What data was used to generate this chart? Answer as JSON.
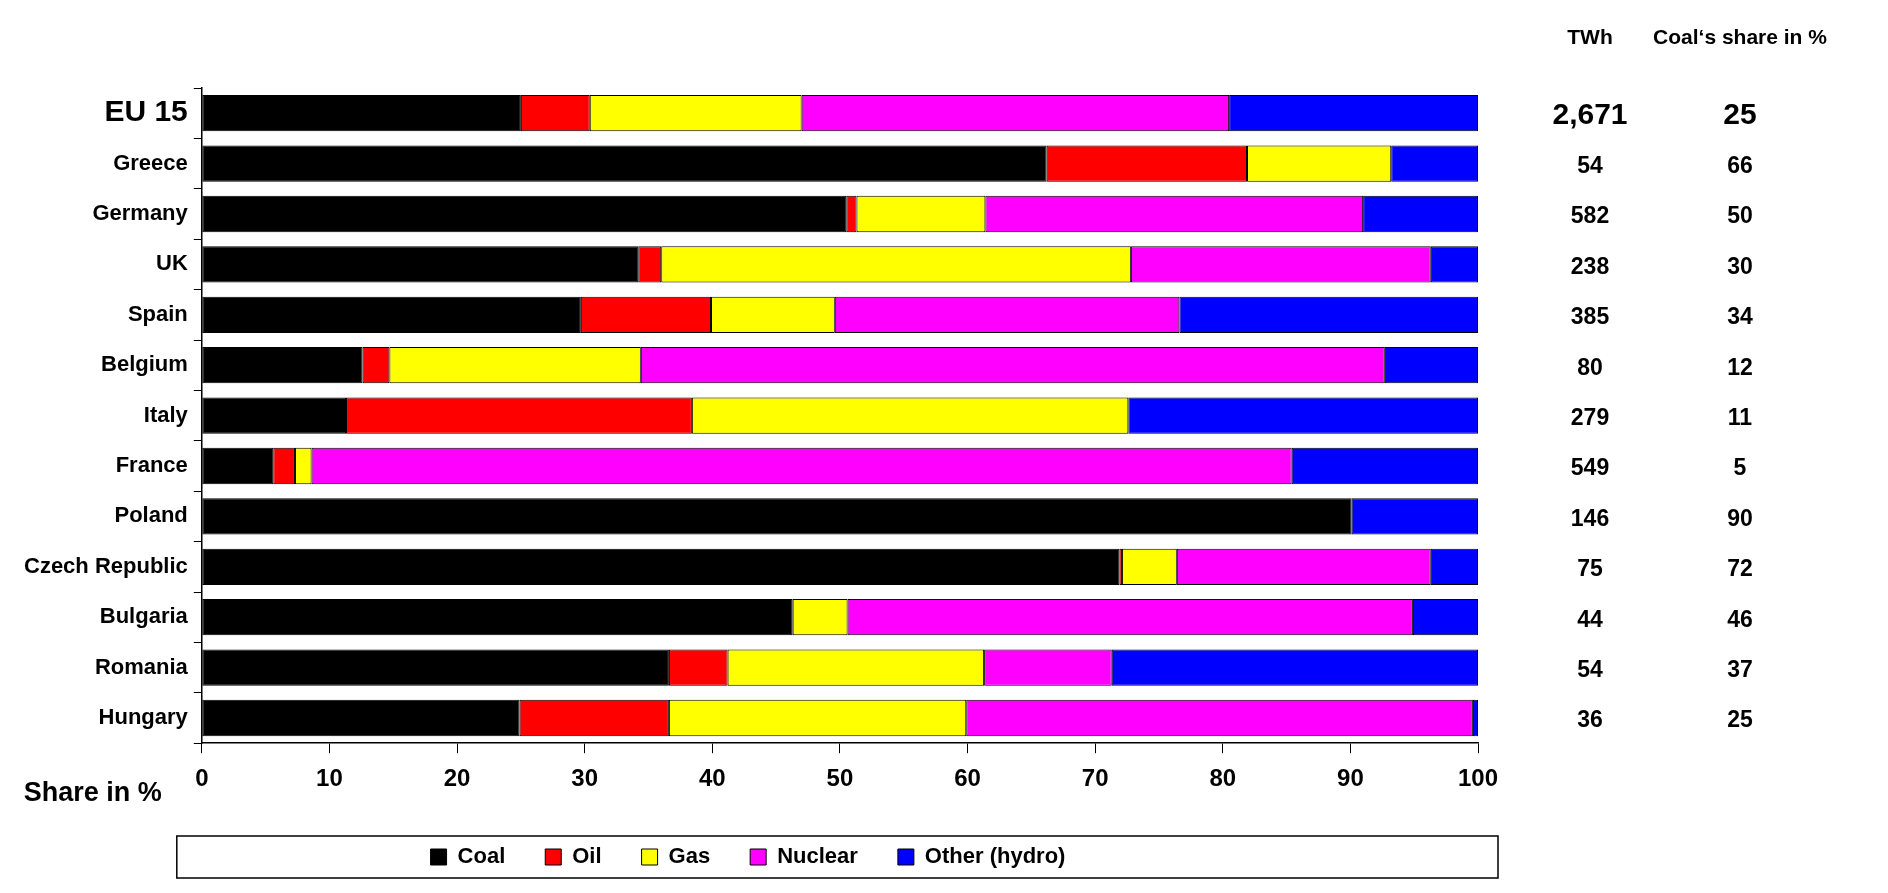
{
  "chart_data": {
    "type": "bar",
    "orientation": "horizontal",
    "stacked": true,
    "xlabel": "Share in %",
    "categories": [
      "EU 15",
      "Greece",
      "Germany",
      "UK",
      "Spain",
      "Belgium",
      "Italy",
      "France",
      "Poland",
      "Czech Republic",
      "Bulgaria",
      "Romania",
      "Hungary"
    ],
    "series": [
      {
        "name": "Coal",
        "color": "#000000",
        "values": [
          25,
          66.2,
          50.5,
          34.2,
          29.7,
          12.6,
          11.3,
          5.6,
          90.1,
          71.9,
          46.3,
          36.6,
          24.9
        ]
      },
      {
        "name": "Oil",
        "color": "#ff0000",
        "values": [
          5.4,
          15.7,
          0.8,
          1.8,
          10.2,
          2.1,
          27.1,
          1.7,
          0,
          0.2,
          0,
          4.6,
          11.7
        ]
      },
      {
        "name": "Gas",
        "color": "#ffff00",
        "values": [
          16.6,
          11.3,
          10.1,
          36.8,
          9.7,
          19.7,
          34.2,
          1.3,
          0,
          4.3,
          4.3,
          20.1,
          23.3
        ]
      },
      {
        "name": "Nuclear",
        "color": "#ff00ff",
        "values": [
          33.5,
          0,
          29.6,
          23.5,
          27,
          58.3,
          0,
          76.8,
          0,
          19.9,
          44.3,
          10,
          39.7
        ]
      },
      {
        "name": "Other (hydro)",
        "color": "#0000ff",
        "values": [
          19.5,
          6.8,
          9,
          3.7,
          23.4,
          7.3,
          27.4,
          14.6,
          9.9,
          3.7,
          5.1,
          28.7,
          0.4
        ]
      }
    ],
    "xlim": [
      0,
      100
    ],
    "xticks": [
      0,
      10,
      20,
      30,
      40,
      50,
      60,
      70,
      80,
      90,
      100
    ],
    "grid": false,
    "legend": "bottom",
    "annotations": [
      "TWh",
      "2,671",
      "54",
      "582",
      "238",
      "385",
      "80",
      "279",
      "549",
      "146",
      "75",
      "44",
      "54",
      "36",
      "Coal‘s share in %",
      "25",
      "66",
      "50",
      "30",
      "34",
      "12",
      "11",
      "5",
      "90",
      "72",
      "46",
      "37",
      "25"
    ]
  }
}
